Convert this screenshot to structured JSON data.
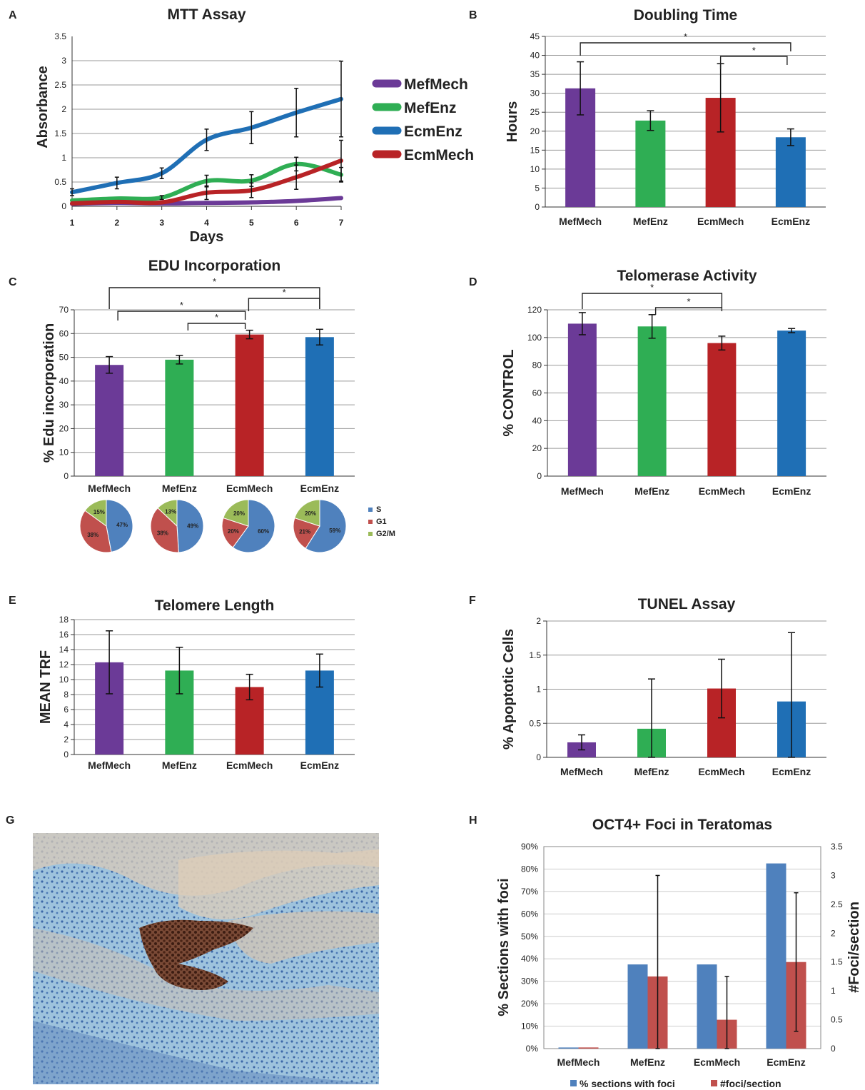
{
  "colors": {
    "MefMech": "#6b3a97",
    "MefEnz": "#2fae54",
    "EcmMech": "#b82326",
    "EcmEnz": "#1f6fb5",
    "grid": "#999999",
    "pieS": "#4f81bd",
    "pieG1": "#c0504d",
    "pieG2M": "#9bbb59",
    "h1": "#4f81bd",
    "h2": "#c0504d"
  },
  "panels": {
    "A": {
      "letter": "A",
      "chart_data": {
        "type": "line",
        "title": "MTT Assay",
        "xlabel": "Days",
        "ylabel": "Absorbance",
        "x": [
          1,
          2,
          3,
          4,
          5,
          6,
          7
        ],
        "xticks": [
          "1",
          "2",
          "3",
          "4",
          "5",
          "6",
          "7"
        ],
        "yticks": [
          "0",
          "0.5",
          "1",
          "1.5",
          "2",
          "2.5",
          "3",
          "3.5"
        ],
        "ylim": [
          0,
          3.5
        ],
        "series": [
          {
            "name": "MefMech",
            "color": "MefMech",
            "values": [
              0.05,
              0.07,
              0.06,
              0.07,
              0.08,
              0.11,
              0.17
            ],
            "err": [
              0,
              0,
              0,
              0,
              0,
              0,
              0
            ]
          },
          {
            "name": "MefEnz",
            "color": "MefEnz",
            "values": [
              0.12,
              0.16,
              0.18,
              0.52,
              0.53,
              0.87,
              0.65
            ],
            "err": [
              0,
              0,
              0.04,
              0.12,
              0.12,
              0.14,
              0.15
            ]
          },
          {
            "name": "EcmEnz",
            "color": "EcmEnz",
            "values": [
              0.29,
              0.48,
              0.68,
              1.37,
              1.62,
              1.93,
              2.21
            ],
            "err": [
              0.07,
              0.12,
              0.11,
              0.22,
              0.33,
              0.5,
              0.78
            ]
          },
          {
            "name": "EcmMech",
            "color": "EcmMech",
            "values": [
              0.06,
              0.09,
              0.08,
              0.28,
              0.33,
              0.6,
              0.94
            ],
            "err": [
              0,
              0,
              0,
              0.14,
              0.15,
              0.25,
              0.42
            ]
          }
        ],
        "legend": [
          "MefMech",
          "MefEnz",
          "EcmEnz",
          "EcmMech"
        ],
        "legend_position": "right"
      }
    },
    "B": {
      "letter": "B",
      "chart_data": {
        "type": "bar",
        "title": "Doubling Time",
        "ylabel": "Hours",
        "categories": [
          "MefMech",
          "MefEnz",
          "EcmMech",
          "EcmEnz"
        ],
        "colors": [
          "MefMech",
          "MefEnz",
          "EcmMech",
          "EcmEnz"
        ],
        "values": [
          31.3,
          22.8,
          28.8,
          18.4
        ],
        "err": [
          7,
          2.6,
          9,
          2.2
        ],
        "yticks": [
          "0",
          "5",
          "10",
          "15",
          "20",
          "25",
          "30",
          "35",
          "40",
          "45"
        ],
        "ylim": [
          0,
          45
        ],
        "significance": [
          {
            "from": 0,
            "to": 3,
            "label": "*"
          },
          {
            "from": 2,
            "to": 3,
            "label": "*"
          }
        ]
      }
    },
    "C": {
      "letter": "C",
      "chart_data": {
        "type": "bar",
        "title": "EDU Incorporation",
        "ylabel": "% Edu incorporation",
        "categories": [
          "MefMech",
          "MefEnz",
          "EcmMech",
          "EcmEnz"
        ],
        "colors": [
          "MefMech",
          "MefEnz",
          "EcmMech",
          "EcmEnz"
        ],
        "values": [
          46.8,
          49,
          59.6,
          58.5
        ],
        "err": [
          3.5,
          1.8,
          1.8,
          3.3
        ],
        "yticks": [
          "0",
          "10",
          "20",
          "30",
          "40",
          "50",
          "60",
          "70"
        ],
        "ylim": [
          0,
          70
        ],
        "significance": [
          {
            "from": 0,
            "to": 3,
            "label": "*"
          },
          {
            "from": 1,
            "to": 3,
            "label": "*"
          },
          {
            "from": 0,
            "to": 2,
            "label": "*"
          },
          {
            "from": 1,
            "to": 2,
            "label": "*"
          }
        ]
      }
    },
    "pies": {
      "chart_data": {
        "type": "pie",
        "legend": [
          "S",
          "G1",
          "G2/M"
        ],
        "slices": [
          {
            "values": [
              47,
              38,
              15
            ],
            "labels": [
              "47%",
              "38%",
              "15%"
            ]
          },
          {
            "values": [
              49,
              38,
              13
            ],
            "labels": [
              "49%",
              "38%",
              "13%"
            ]
          },
          {
            "values": [
              60,
              20,
              20
            ],
            "labels": [
              "60%",
              "20%",
              "20%"
            ]
          },
          {
            "values": [
              59,
              21,
              20
            ],
            "labels": [
              "59%",
              "21%",
              "20%"
            ]
          }
        ]
      }
    },
    "D": {
      "letter": "D",
      "chart_data": {
        "type": "bar",
        "title": "Telomerase Activity",
        "ylabel": "% CONTROL",
        "categories": [
          "MefMech",
          "MefEnz",
          "EcmMech",
          "EcmEnz"
        ],
        "colors": [
          "MefMech",
          "MefEnz",
          "EcmMech",
          "EcmEnz"
        ],
        "values": [
          110,
          108,
          96,
          105
        ],
        "err": [
          8,
          8.5,
          5,
          1.5
        ],
        "yticks": [
          "0",
          "20",
          "40",
          "60",
          "80",
          "100",
          "120"
        ],
        "ylim": [
          0,
          120
        ],
        "significance": [
          {
            "from": 0,
            "to": 2,
            "label": "*"
          },
          {
            "from": 1,
            "to": 2,
            "label": "*"
          }
        ]
      }
    },
    "E": {
      "letter": "E",
      "chart_data": {
        "type": "bar",
        "title": "Telomere Length",
        "ylabel": "MEAN TRF",
        "categories": [
          "MefMech",
          "MefEnz",
          "EcmMech",
          "EcmEnz"
        ],
        "colors": [
          "MefMech",
          "MefEnz",
          "EcmMech",
          "EcmEnz"
        ],
        "values": [
          12.3,
          11.2,
          9,
          11.2
        ],
        "err": [
          4.2,
          3.1,
          1.7,
          2.2
        ],
        "yticks": [
          "0",
          "2",
          "4",
          "6",
          "8",
          "10",
          "12",
          "14",
          "16",
          "18"
        ],
        "ylim": [
          0,
          18
        ]
      }
    },
    "F": {
      "letter": "F",
      "chart_data": {
        "type": "bar",
        "title": "TUNEL Assay",
        "ylabel": "% Apoptotic Cells",
        "categories": [
          "MefMech",
          "MefEnz",
          "EcmMech",
          "EcmEnz"
        ],
        "colors": [
          "MefMech",
          "MefEnz",
          "EcmMech",
          "EcmEnz"
        ],
        "values": [
          0.22,
          0.42,
          1.01,
          0.82
        ],
        "err": [
          0.11,
          0.73,
          0.43,
          1.01
        ],
        "yticks": [
          "0",
          "0.5",
          "1",
          "1.5",
          "2"
        ],
        "ylim": [
          0,
          2
        ]
      }
    },
    "G": {
      "letter": "G"
    },
    "H": {
      "letter": "H",
      "chart_data": {
        "type": "bar",
        "title": "OCT4+ Foci in Teratomas",
        "ylabel": "% Sections with foci",
        "ylabel_right": "#Foci/section",
        "categories": [
          "MefMech",
          "MefEnz",
          "EcmMech",
          "EcmEnz"
        ],
        "yticks": [
          "0%",
          "10%",
          "20%",
          "30%",
          "40%",
          "50%",
          "60%",
          "70%",
          "80%",
          "90%"
        ],
        "ylim": [
          0,
          0.9
        ],
        "yticks_right": [
          "0",
          "0.5",
          "1",
          "1.5",
          "2",
          "2.5",
          "3",
          "3.5"
        ],
        "ylim_right": [
          0,
          3.5
        ],
        "series": [
          {
            "name": "% sections with foci",
            "axis": "left",
            "color": "h1",
            "values": [
              0.005,
              0.375,
              0.375,
              0.825
            ],
            "err": [
              0,
              0,
              0,
              0
            ]
          },
          {
            "name": "#foci/section",
            "axis": "right",
            "color": "h2",
            "values": [
              0.02,
              1.25,
              0.5,
              1.5
            ],
            "err": [
              0,
              1.75,
              0.75,
              1.2
            ]
          }
        ],
        "legend_position": "bottom"
      }
    }
  }
}
